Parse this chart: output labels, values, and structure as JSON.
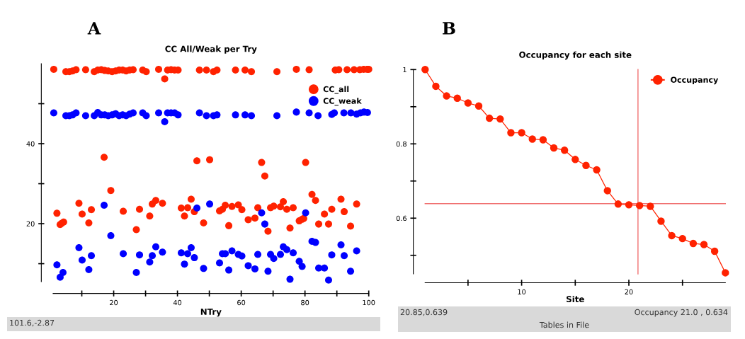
{
  "chart_data": [
    {
      "type": "scatter",
      "title": "CC All/Weak per Try",
      "xlabel": "NTry",
      "xlim": [
        1,
        100
      ],
      "xticks": [
        {
          "value": 10,
          "label": null
        },
        20,
        {
          "value": 30,
          "label": null
        },
        40,
        {
          "value": 50,
          "label": null
        },
        60,
        {
          "value": 70,
          "label": null
        },
        80,
        {
          "value": 90,
          "label": null
        },
        100
      ],
      "ylim": [
        5.5,
        60
      ],
      "yticks": [
        {
          "value": 10,
          "label": null
        },
        20,
        {
          "value": 30,
          "label": null
        },
        40,
        {
          "value": 50,
          "label": null
        }
      ],
      "grid": false,
      "legend": "top right",
      "marker": "circle",
      "annotations": [
        "A",
        "101.6,-2.87"
      ],
      "series": [
        {
          "name": "CC_all",
          "color": "#ff2200",
          "x": [
            1.2,
            5.0,
            6.1,
            7.1,
            8.2,
            11.2,
            13.9,
            15.0,
            16.1,
            17.2,
            18.3,
            19.5,
            20.6,
            21.7,
            22.8,
            23.9,
            25.0,
            26.1,
            29.1,
            30.2,
            34.1,
            36.0,
            36.9,
            38.0,
            39.1,
            40.2,
            46.9,
            49.1,
            51.3,
            52.4,
            58.2,
            61.2,
            63.2,
            71.2,
            77.3,
            81.3,
            89.5,
            90.6,
            93.2,
            95.4,
            97.2,
            98.4,
            99.5,
            100,
            2.2,
            3.2,
            3.7,
            4.3,
            9.1,
            10.1,
            12.2,
            13.0,
            17.0,
            19.1,
            23.0,
            27.1,
            28.1,
            31.3,
            32.1,
            33.2,
            35.3,
            41.2,
            42.2,
            43.2,
            44.3,
            45.3,
            46.1,
            48.2,
            50.1,
            53.2,
            54.1,
            55.0,
            56.1,
            57.1,
            59.1,
            60.2,
            62.2,
            64.3,
            65.2,
            66.4,
            67.4,
            68.4,
            69.2,
            70.2,
            72.3,
            73.2,
            74.3,
            75.3,
            76.3,
            78.2,
            79.1,
            79.6,
            80.2,
            82.2,
            83.3,
            84.3,
            86.1,
            87.4,
            88.4,
            91.3,
            92.3,
            94.3,
            96.2
          ],
          "values": [
            58.6,
            58.0,
            58.0,
            58.2,
            58.5,
            58.5,
            58.0,
            58.4,
            58.5,
            58.3,
            58.2,
            58.0,
            58.2,
            58.4,
            58.4,
            58.2,
            58.4,
            58.5,
            58.4,
            58.0,
            58.6,
            56.2,
            58.4,
            58.5,
            58.4,
            58.4,
            58.4,
            58.4,
            58.0,
            58.4,
            58.4,
            58.4,
            58.0,
            58.0,
            58.6,
            58.5,
            58.4,
            58.5,
            58.5,
            58.5,
            58.5,
            58.6,
            58.6,
            58.6,
            22.6,
            19.8,
            20.1,
            20.4,
            25.1,
            22.4,
            20.2,
            23.5,
            36.6,
            28.3,
            23.1,
            18.5,
            23.6,
            21.9,
            24.9,
            25.8,
            25.1,
            23.9,
            21.9,
            24.0,
            26.1,
            23.0,
            35.7,
            20.2,
            36.0,
            23.2,
            23.6,
            24.6,
            19.5,
            24.3,
            24.7,
            23.5,
            21.0,
            21.4,
            24.0,
            35.3,
            31.9,
            18.1,
            24.0,
            24.4,
            24.2,
            25.5,
            23.6,
            18.9,
            24.0,
            20.7,
            21.1,
            21.3,
            35.3,
            27.3,
            25.8,
            19.9,
            22.4,
            19.9,
            23.6,
            26.1,
            23.0,
            19.4,
            24.9
          ]
        },
        {
          "name": "CC_weak",
          "color": "#0000ff",
          "x": [
            1.2,
            5.0,
            6.1,
            7.1,
            8.2,
            11.2,
            13.9,
            15.0,
            16.1,
            17.2,
            18.3,
            19.5,
            20.6,
            21.7,
            22.8,
            23.9,
            25.0,
            26.1,
            29.1,
            30.2,
            34.1,
            36.0,
            36.9,
            38.0,
            39.1,
            40.2,
            46.9,
            49.1,
            51.3,
            52.4,
            58.2,
            61.2,
            63.2,
            71.2,
            77.3,
            81.3,
            84.1,
            88.4,
            89.2,
            92.2,
            94.4,
            96.2,
            97.4,
            98.5,
            99.6,
            2.2,
            3.2,
            4.1,
            9.1,
            10.1,
            12.2,
            13.0,
            17.0,
            19.1,
            23.0,
            27.1,
            28.1,
            31.3,
            32.1,
            33.2,
            35.3,
            41.2,
            42.2,
            43.2,
            44.3,
            45.3,
            46.1,
            48.2,
            50.1,
            53.2,
            54.1,
            55.0,
            56.1,
            57.1,
            59.1,
            60.2,
            62.2,
            64.3,
            65.2,
            66.4,
            67.4,
            68.4,
            69.2,
            70.2,
            72.3,
            73.2,
            74.3,
            75.3,
            76.3,
            78.2,
            79.1,
            80.2,
            82.2,
            83.3,
            84.3,
            86.1,
            87.4,
            88.4,
            91.3,
            92.3,
            94.3,
            96.2
          ],
          "values": [
            47.7,
            47.0,
            47.0,
            47.2,
            47.7,
            47.0,
            47.0,
            47.8,
            47.2,
            47.2,
            47.0,
            47.2,
            47.5,
            47.0,
            47.2,
            47.0,
            47.4,
            47.7,
            47.7,
            47.0,
            47.7,
            45.5,
            47.7,
            47.7,
            47.7,
            47.2,
            47.7,
            47.0,
            47.0,
            47.2,
            47.2,
            47.2,
            47.0,
            47.0,
            47.9,
            47.7,
            47.0,
            47.3,
            47.7,
            47.7,
            47.7,
            47.4,
            47.7,
            47.9,
            47.8,
            9.7,
            6.6,
            7.8,
            14.0,
            10.9,
            8.5,
            12.0,
            24.6,
            17.0,
            12.5,
            7.8,
            12.2,
            10.4,
            12.0,
            14.2,
            12.9,
            12.7,
            9.9,
            12.5,
            14.0,
            11.5,
            23.9,
            8.8,
            24.9,
            10.2,
            12.5,
            12.5,
            8.4,
            13.2,
            12.3,
            11.9,
            9.5,
            8.7,
            12.3,
            22.7,
            19.9,
            8.1,
            12.3,
            11.3,
            12.3,
            14.2,
            13.5,
            6.1,
            12.7,
            10.6,
            9.3,
            22.7,
            15.6,
            15.3,
            8.9,
            8.9,
            5.9,
            12.2,
            14.7,
            12.0,
            8.1,
            13.2
          ]
        }
      ]
    },
    {
      "type": "line",
      "title": "Occupancy for each site",
      "xlabel": "Site",
      "x": [
        1,
        2,
        3,
        4,
        5,
        6,
        7,
        8,
        9,
        10,
        11,
        12,
        13,
        14,
        15,
        16,
        17,
        18,
        19,
        20,
        21,
        22,
        23,
        24,
        25,
        26,
        27,
        28,
        29
      ],
      "xlim": [
        1,
        29
      ],
      "xticks": [
        {
          "value": 5,
          "label": null
        },
        10,
        {
          "value": 15,
          "label": null
        },
        20,
        {
          "value": 25,
          "label": null
        }
      ],
      "ylim": [
        0.45,
        1.0
      ],
      "yticks": [
        {
          "value": 0.5,
          "label": null
        },
        0.6,
        {
          "value": 0.7,
          "label": null
        },
        0.8,
        {
          "value": 0.9,
          "label": null
        },
        1
      ],
      "grid": false,
      "legend": "top right",
      "marker": "circle",
      "line_style": "solid",
      "ref_lines": [
        {
          "axis": "x",
          "value": 20.85,
          "color": "#f07070"
        },
        {
          "axis": "y",
          "value": 0.639,
          "color": "#f07070"
        }
      ],
      "annotations": [
        "B",
        "20.85,0.639",
        "Occupancy 21.0 , 0.634",
        "Tables in File"
      ],
      "series": [
        {
          "name": "Occupancy",
          "color": "#ff2200",
          "values": [
            1.0,
            0.955,
            0.929,
            0.923,
            0.91,
            0.902,
            0.869,
            0.867,
            0.83,
            0.83,
            0.813,
            0.811,
            0.789,
            0.783,
            0.758,
            0.742,
            0.73,
            0.674,
            0.638,
            0.636,
            0.634,
            0.632,
            0.592,
            0.553,
            0.545,
            0.532,
            0.529,
            0.511,
            0.453
          ]
        }
      ]
    }
  ]
}
